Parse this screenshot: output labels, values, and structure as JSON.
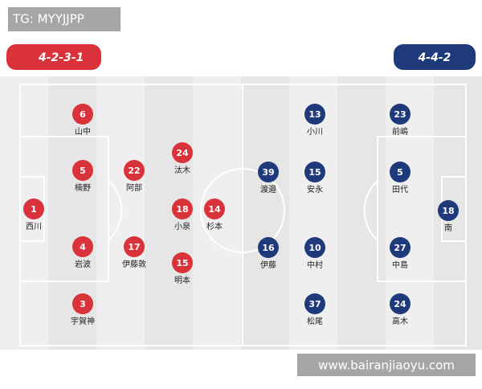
{
  "watermark_top": "TG: MYYJJPP",
  "watermark_bottom": "www.bairanjiaoyu.com",
  "home": {
    "formation": "4-2-3-1",
    "players": [
      {
        "number": 1,
        "name": "西川"
      },
      {
        "number": 6,
        "name": "山中"
      },
      {
        "number": 5,
        "name": "楠野"
      },
      {
        "number": 4,
        "name": "岩波"
      },
      {
        "number": 3,
        "name": "宇賀神"
      },
      {
        "number": 22,
        "name": "阿部"
      },
      {
        "number": 17,
        "name": "伊藤敦"
      },
      {
        "number": 24,
        "name": "汰木"
      },
      {
        "number": 18,
        "name": "小泉"
      },
      {
        "number": 15,
        "name": "明本"
      },
      {
        "number": 14,
        "name": "杉本"
      }
    ]
  },
  "away": {
    "formation": "4-4-2",
    "players": [
      {
        "number": 13,
        "name": "小川"
      },
      {
        "number": 23,
        "name": "前嶋"
      },
      {
        "number": 39,
        "name": "渡邉"
      },
      {
        "number": 15,
        "name": "安永"
      },
      {
        "number": 5,
        "name": "田代"
      },
      {
        "number": 18,
        "name": "南"
      },
      {
        "number": 16,
        "name": "伊藤"
      },
      {
        "number": 10,
        "name": "中村"
      },
      {
        "number": 27,
        "name": "中島"
      },
      {
        "number": 37,
        "name": "松尾"
      },
      {
        "number": 24,
        "name": "高木"
      }
    ]
  }
}
